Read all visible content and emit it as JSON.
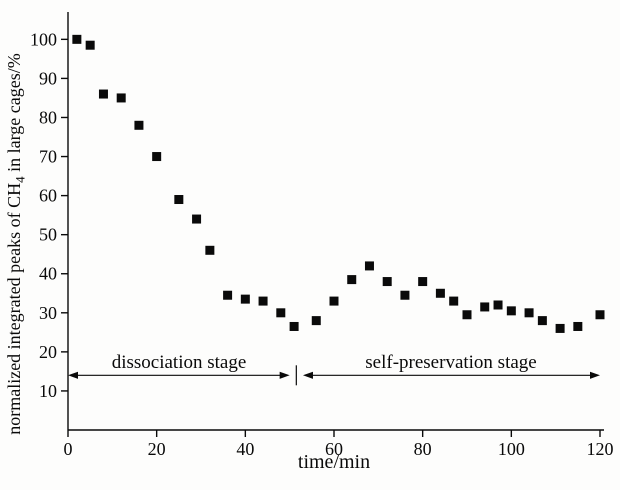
{
  "figure": {
    "background": "#fdfdfc",
    "ink_color": "#0a0a0a"
  },
  "chart_data": {
    "type": "scatter",
    "title": "",
    "xlabel": "time/min",
    "ylabel": "normalized integrated peaks of CH4 in large cages/%",
    "ylabel_parts": {
      "prefix": "normalized integrated peaks of CH",
      "sub": "4",
      "suffix": " in large cages/%"
    },
    "xlim": [
      0,
      120
    ],
    "ylim": [
      0,
      107
    ],
    "xticks": [
      0,
      20,
      40,
      60,
      80,
      100,
      120
    ],
    "yticks": [
      10,
      20,
      30,
      40,
      50,
      60,
      70,
      80,
      90,
      100
    ],
    "grid": false,
    "legend": "none",
    "marker": "filled-square",
    "marker_color": "#0a0a0a",
    "series": [
      {
        "name": "normalized integrated CH4 peaks in large cages",
        "points": [
          [
            2,
            100
          ],
          [
            5,
            98.5
          ],
          [
            8,
            86
          ],
          [
            12,
            85
          ],
          [
            16,
            78
          ],
          [
            20,
            70
          ],
          [
            25,
            59
          ],
          [
            29,
            54
          ],
          [
            32,
            46
          ],
          [
            36,
            34.5
          ],
          [
            40,
            33.5
          ],
          [
            44,
            33
          ],
          [
            48,
            30
          ],
          [
            51,
            26.5
          ],
          [
            56,
            28
          ],
          [
            60,
            33
          ],
          [
            64,
            38.5
          ],
          [
            68,
            42
          ],
          [
            72,
            38
          ],
          [
            76,
            34.5
          ],
          [
            80,
            38
          ],
          [
            84,
            35
          ],
          [
            87,
            33
          ],
          [
            90,
            29.5
          ],
          [
            94,
            31.5
          ],
          [
            97,
            32
          ],
          [
            100,
            30.5
          ],
          [
            104,
            30
          ],
          [
            107,
            28
          ],
          [
            111,
            26
          ],
          [
            115,
            26.5
          ],
          [
            120,
            29.5
          ]
        ]
      }
    ],
    "annotations": {
      "line_y": 14,
      "divider_x": 51.5,
      "stages": [
        {
          "label": "dissociation stage",
          "x_start": 0,
          "x_end": 50
        },
        {
          "label": "self-preservation stage",
          "x_start": 53,
          "x_end": 120
        }
      ]
    }
  }
}
